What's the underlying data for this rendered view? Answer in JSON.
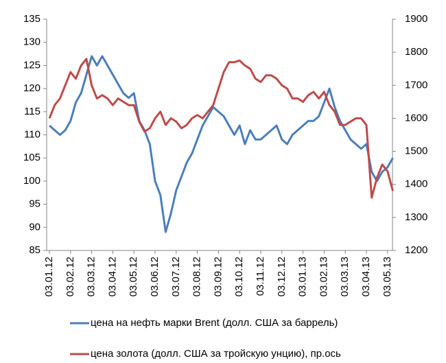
{
  "chart_data": {
    "type": "line",
    "categories": [
      "03.01.12",
      null,
      null,
      null,
      "03.02.12",
      null,
      null,
      null,
      "03.03.12",
      null,
      null,
      null,
      "03.04.12",
      null,
      null,
      null,
      "03.05.12",
      null,
      null,
      null,
      "03.06.12",
      null,
      null,
      null,
      "03.07.12",
      null,
      null,
      null,
      "03.08.12",
      null,
      null,
      null,
      "03.09.12",
      null,
      null,
      null,
      "03.10.12",
      null,
      null,
      null,
      "03.11.12",
      null,
      null,
      null,
      "03.12.12",
      null,
      null,
      null,
      "03.01.13",
      null,
      null,
      null,
      "03.02.13",
      null,
      null,
      null,
      "03.03.13",
      null,
      null,
      null,
      "03.04.13",
      null,
      null,
      null,
      "03.05.13",
      null
    ],
    "series": [
      {
        "name": "цена на нефть марки Brent (долл. США за баррель)",
        "color": "#4a7ebb",
        "values": [
          112,
          111,
          110,
          111,
          113,
          117,
          119,
          123,
          127,
          125,
          127,
          125,
          123,
          121,
          119,
          118,
          119,
          113,
          111,
          108,
          100,
          97,
          89,
          93,
          98,
          101,
          104,
          106,
          109,
          112,
          114,
          116,
          115,
          114,
          112,
          110,
          112,
          108,
          111,
          109,
          109,
          110,
          111,
          112,
          109,
          108,
          110,
          111,
          112,
          113,
          113,
          114,
          117,
          120,
          116,
          113,
          111,
          109,
          108,
          107,
          108,
          102,
          100,
          102,
          103,
          105
        ]
      },
      {
        "name": "цена золота (долл. США за тройскую унцию), пр.ось",
        "color": "#be4b48",
        "axis": "y2",
        "values": [
          1600,
          1640,
          1660,
          1700,
          1740,
          1720,
          1760,
          1780,
          1700,
          1660,
          1670,
          1660,
          1640,
          1660,
          1650,
          1640,
          1640,
          1590,
          1560,
          1570,
          1600,
          1620,
          1580,
          1600,
          1590,
          1570,
          1580,
          1600,
          1610,
          1600,
          1620,
          1640,
          1690,
          1740,
          1770,
          1770,
          1775,
          1760,
          1750,
          1720,
          1710,
          1730,
          1730,
          1720,
          1700,
          1690,
          1660,
          1660,
          1650,
          1670,
          1680,
          1660,
          1680,
          1640,
          1620,
          1580,
          1580,
          1590,
          1600,
          1600,
          1580,
          1360,
          1420,
          1460,
          1440,
          1380
        ]
      }
    ],
    "ylim": [
      85,
      135
    ],
    "yticks": [
      85,
      90,
      95,
      100,
      105,
      110,
      115,
      120,
      125,
      130,
      135
    ],
    "y2lim": [
      1200,
      1900
    ],
    "y2ticks": [
      1200,
      1300,
      1400,
      1500,
      1600,
      1700,
      1800,
      1900
    ],
    "legend": "bottom"
  }
}
